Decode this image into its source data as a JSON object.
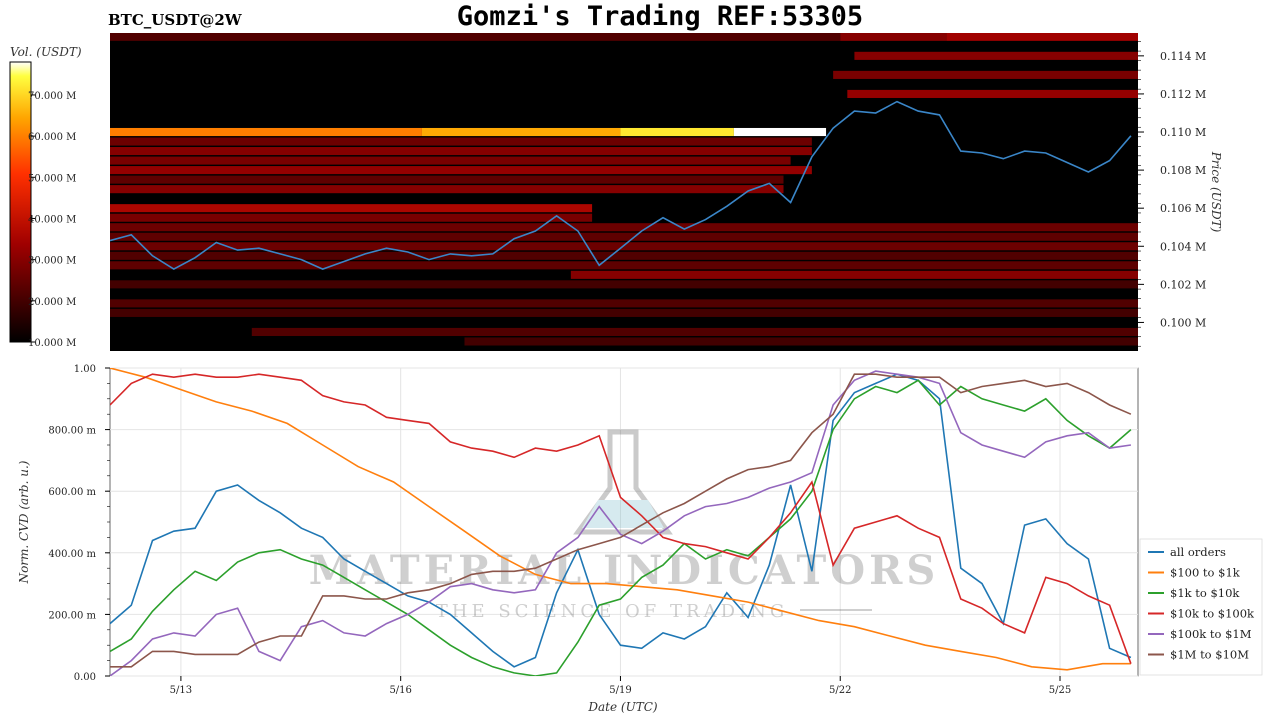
{
  "header": {
    "symbol": "BTC_USDT@2W",
    "title": "Gomzi's Trading REF:53305"
  },
  "watermark": {
    "main": "MATERIAL INDICATORS",
    "sub": "THE SCIENCE OF TRADING"
  },
  "chart_data": [
    {
      "type": "heatmap",
      "name_hidden": "",
      "colorbar": {
        "label": "Vol. (USDT)",
        "ticks": [
          "10.000 M",
          "20.000 M",
          "30.000 M",
          "40.000 M",
          "50.000 M",
          "60.000 M",
          "70.000 M"
        ],
        "range": [
          10,
          78
        ]
      },
      "ylabel": "Price (USDT)",
      "yticks": [
        "0.100 M",
        "0.102 M",
        "0.104 M",
        "0.106 M",
        "0.108 M",
        "0.110 M",
        "0.112 M",
        "0.114 M"
      ],
      "ylim": [
        98.5,
        115.2
      ],
      "xlim": [
        0,
        14.5
      ],
      "colors": {
        "low": "#000000",
        "mid": "#b30000",
        "high": "#ff6a00",
        "top": "#ffffff"
      },
      "walls": [
        {
          "price": 110.0,
          "t_start": 0.0,
          "t_end": 10.1,
          "levels": [
            [
              0,
              60
            ],
            [
              4.4,
              65
            ],
            [
              7.2,
              72
            ],
            [
              8.8,
              78
            ]
          ]
        },
        {
          "price": 115.0,
          "t_start": 0.0,
          "t_end": 14.5,
          "levels": [
            [
              0,
              22
            ],
            [
              10.3,
              30
            ],
            [
              11.8,
              34
            ]
          ]
        },
        {
          "price": 114.0,
          "t_start": 10.5,
          "t_end": 14.5,
          "levels": [
            [
              10.5,
              30
            ]
          ]
        },
        {
          "price": 113.0,
          "t_start": 10.2,
          "t_end": 14.5,
          "levels": [
            [
              10.2,
              28
            ]
          ]
        },
        {
          "price": 112.0,
          "t_start": 10.4,
          "t_end": 14.5,
          "levels": [
            [
              10.4,
              32
            ]
          ]
        },
        {
          "price": 109.5,
          "t_start": 0.0,
          "t_end": 9.9,
          "levels": [
            [
              0,
              26
            ]
          ]
        },
        {
          "price": 109.0,
          "t_start": 0.0,
          "t_end": 9.9,
          "levels": [
            [
              0,
              30
            ]
          ]
        },
        {
          "price": 108.5,
          "t_start": 0.0,
          "t_end": 9.6,
          "levels": [
            [
              0,
              28
            ]
          ]
        },
        {
          "price": 108.0,
          "t_start": 0.0,
          "t_end": 9.9,
          "levels": [
            [
              0,
              32
            ]
          ]
        },
        {
          "price": 107.5,
          "t_start": 0.0,
          "t_end": 9.5,
          "levels": [
            [
              0,
              24
            ]
          ]
        },
        {
          "price": 107.0,
          "t_start": 0.0,
          "t_end": 9.5,
          "levels": [
            [
              0,
              30
            ]
          ]
        },
        {
          "price": 106.0,
          "t_start": 0.0,
          "t_end": 6.8,
          "levels": [
            [
              0,
              36
            ]
          ]
        },
        {
          "price": 105.5,
          "t_start": 0.0,
          "t_end": 6.8,
          "levels": [
            [
              0,
              28
            ]
          ]
        },
        {
          "price": 105.0,
          "t_start": 0.0,
          "t_end": 14.5,
          "levels": [
            [
              0,
              26
            ]
          ]
        },
        {
          "price": 104.5,
          "t_start": 0.0,
          "t_end": 14.5,
          "levels": [
            [
              0,
              24
            ]
          ]
        },
        {
          "price": 104.0,
          "t_start": 0.0,
          "t_end": 14.5,
          "levels": [
            [
              0,
              26
            ]
          ]
        },
        {
          "price": 103.5,
          "t_start": 0.0,
          "t_end": 14.5,
          "levels": [
            [
              0,
              22
            ]
          ]
        },
        {
          "price": 103.0,
          "t_start": 0.0,
          "t_end": 14.5,
          "levels": [
            [
              0,
              24
            ]
          ]
        },
        {
          "price": 102.5,
          "t_start": 6.5,
          "t_end": 14.5,
          "levels": [
            [
              6.5,
              30
            ]
          ]
        },
        {
          "price": 102.0,
          "t_start": 0.0,
          "t_end": 14.5,
          "levels": [
            [
              0,
              20
            ]
          ]
        },
        {
          "price": 101.0,
          "t_start": 0.0,
          "t_end": 14.5,
          "levels": [
            [
              0,
              22
            ]
          ]
        },
        {
          "price": 100.5,
          "t_start": 0.0,
          "t_end": 14.5,
          "levels": [
            [
              0,
              20
            ]
          ]
        },
        {
          "price": 99.5,
          "t_start": 2.0,
          "t_end": 14.5,
          "levels": [
            [
              2,
              22
            ]
          ]
        },
        {
          "price": 99.0,
          "t_start": 5.0,
          "t_end": 14.5,
          "levels": [
            [
              5,
              20
            ]
          ]
        }
      ],
      "price_series": {
        "color": "#3a86c8",
        "t": [
          0.0,
          0.3,
          0.6,
          0.9,
          1.2,
          1.5,
          1.8,
          2.1,
          2.4,
          2.7,
          3.0,
          3.3,
          3.6,
          3.9,
          4.2,
          4.5,
          4.8,
          5.1,
          5.4,
          5.7,
          6.0,
          6.3,
          6.6,
          6.9,
          7.2,
          7.5,
          7.8,
          8.1,
          8.4,
          8.7,
          9.0,
          9.3,
          9.6,
          9.9,
          10.2,
          10.5,
          10.8,
          11.1,
          11.4,
          11.7,
          12.0,
          12.3,
          12.6,
          12.9,
          13.2,
          13.5,
          13.8,
          14.1,
          14.4
        ],
        "y": [
          104.3,
          104.6,
          103.5,
          102.8,
          103.4,
          104.2,
          103.8,
          103.9,
          103.6,
          103.3,
          102.8,
          103.2,
          103.6,
          103.9,
          103.7,
          103.3,
          103.6,
          103.5,
          103.6,
          104.4,
          104.8,
          105.6,
          104.8,
          103.0,
          103.9,
          104.8,
          105.5,
          104.9,
          105.4,
          106.1,
          106.9,
          107.3,
          106.3,
          108.7,
          110.2,
          111.1,
          111.0,
          111.6,
          111.1,
          110.9,
          109.0,
          108.9,
          108.6,
          109.0,
          108.9,
          108.4,
          107.9,
          108.5,
          109.8
        ]
      }
    },
    {
      "type": "line",
      "ylabel": "Norm. CVD (arb. u.)",
      "xlabel": "Date (UTC)",
      "yticks": [
        "0.00",
        "200.00 m",
        "400.00 m",
        "600.00 m",
        "800.00 m",
        "1.00"
      ],
      "ylim": [
        0,
        1.0
      ],
      "xlim": [
        0,
        14.5
      ],
      "xticks": [
        {
          "t": 1.0,
          "label": "5/13"
        },
        {
          "t": 4.1,
          "label": "5/16"
        },
        {
          "t": 7.2,
          "label": "5/19"
        },
        {
          "t": 10.3,
          "label": "5/22"
        },
        {
          "t": 13.4,
          "label": "5/25"
        }
      ],
      "legend_position": "bottom-right",
      "series": [
        {
          "name": "all orders",
          "color": "#1f77b4",
          "t": [
            0,
            0.3,
            0.6,
            0.9,
            1.2,
            1.5,
            1.8,
            2.1,
            2.4,
            2.7,
            3.0,
            3.3,
            3.6,
            3.9,
            4.2,
            4.5,
            4.8,
            5.1,
            5.4,
            5.7,
            6.0,
            6.3,
            6.6,
            6.9,
            7.2,
            7.5,
            7.8,
            8.1,
            8.4,
            8.7,
            9.0,
            9.3,
            9.6,
            9.9,
            10.2,
            10.5,
            10.8,
            11.1,
            11.4,
            11.7,
            12.0,
            12.3,
            12.6,
            12.9,
            13.2,
            13.5,
            13.8,
            14.1,
            14.4
          ],
          "y": [
            0.17,
            0.23,
            0.44,
            0.47,
            0.48,
            0.6,
            0.62,
            0.57,
            0.53,
            0.48,
            0.45,
            0.38,
            0.34,
            0.3,
            0.26,
            0.24,
            0.2,
            0.14,
            0.08,
            0.03,
            0.06,
            0.27,
            0.41,
            0.2,
            0.1,
            0.09,
            0.14,
            0.12,
            0.16,
            0.27,
            0.19,
            0.36,
            0.62,
            0.34,
            0.83,
            0.92,
            0.95,
            0.98,
            0.96,
            0.9,
            0.35,
            0.3,
            0.17,
            0.49,
            0.51,
            0.43,
            0.38,
            0.09,
            0.06
          ]
        },
        {
          "name": "$100 to $1k",
          "color": "#ff7f0e",
          "t": [
            0,
            0.5,
            1.0,
            1.5,
            2.0,
            2.5,
            3.0,
            3.5,
            4.0,
            4.5,
            5.0,
            5.5,
            6.0,
            6.5,
            7.0,
            7.5,
            8.0,
            8.5,
            9.0,
            9.5,
            10.0,
            10.5,
            11.0,
            11.5,
            12.0,
            12.5,
            13.0,
            13.5,
            14.0,
            14.4
          ],
          "y": [
            1.0,
            0.97,
            0.93,
            0.89,
            0.86,
            0.82,
            0.75,
            0.68,
            0.63,
            0.55,
            0.47,
            0.39,
            0.33,
            0.3,
            0.3,
            0.29,
            0.28,
            0.26,
            0.24,
            0.21,
            0.18,
            0.16,
            0.13,
            0.1,
            0.08,
            0.06,
            0.03,
            0.02,
            0.04,
            0.04
          ]
        },
        {
          "name": "$1k to $10k",
          "color": "#2ca02c",
          "t": [
            0,
            0.3,
            0.6,
            0.9,
            1.2,
            1.5,
            1.8,
            2.1,
            2.4,
            2.7,
            3.0,
            3.3,
            3.6,
            3.9,
            4.2,
            4.5,
            4.8,
            5.1,
            5.4,
            5.7,
            6.0,
            6.3,
            6.6,
            6.9,
            7.2,
            7.5,
            7.8,
            8.1,
            8.4,
            8.7,
            9.0,
            9.3,
            9.6,
            9.9,
            10.2,
            10.5,
            10.8,
            11.1,
            11.4,
            11.7,
            12.0,
            12.3,
            12.6,
            12.9,
            13.2,
            13.5,
            13.8,
            14.1,
            14.4
          ],
          "y": [
            0.08,
            0.12,
            0.21,
            0.28,
            0.34,
            0.31,
            0.37,
            0.4,
            0.41,
            0.38,
            0.36,
            0.32,
            0.28,
            0.24,
            0.2,
            0.15,
            0.1,
            0.06,
            0.03,
            0.01,
            0.0,
            0.01,
            0.11,
            0.23,
            0.25,
            0.32,
            0.36,
            0.43,
            0.38,
            0.41,
            0.39,
            0.45,
            0.51,
            0.6,
            0.8,
            0.9,
            0.94,
            0.92,
            0.96,
            0.88,
            0.94,
            0.9,
            0.88,
            0.86,
            0.9,
            0.83,
            0.78,
            0.74,
            0.8
          ]
        },
        {
          "name": "$10k to $100k",
          "color": "#d62728",
          "t": [
            0,
            0.3,
            0.6,
            0.9,
            1.2,
            1.5,
            1.8,
            2.1,
            2.4,
            2.7,
            3.0,
            3.3,
            3.6,
            3.9,
            4.2,
            4.5,
            4.8,
            5.1,
            5.4,
            5.7,
            6.0,
            6.3,
            6.6,
            6.9,
            7.2,
            7.5,
            7.8,
            8.1,
            8.4,
            8.7,
            9.0,
            9.3,
            9.6,
            9.9,
            10.2,
            10.5,
            10.8,
            11.1,
            11.4,
            11.7,
            12.0,
            12.3,
            12.6,
            12.9,
            13.2,
            13.5,
            13.8,
            14.1,
            14.4
          ],
          "y": [
            0.88,
            0.95,
            0.98,
            0.97,
            0.98,
            0.97,
            0.97,
            0.98,
            0.97,
            0.96,
            0.91,
            0.89,
            0.88,
            0.84,
            0.83,
            0.82,
            0.76,
            0.74,
            0.73,
            0.71,
            0.74,
            0.73,
            0.75,
            0.78,
            0.58,
            0.52,
            0.45,
            0.43,
            0.42,
            0.4,
            0.38,
            0.45,
            0.53,
            0.63,
            0.36,
            0.48,
            0.5,
            0.52,
            0.48,
            0.45,
            0.25,
            0.22,
            0.17,
            0.14,
            0.32,
            0.3,
            0.26,
            0.23,
            0.04
          ]
        },
        {
          "name": "$100k to $1M",
          "color": "#9467bd",
          "t": [
            0,
            0.3,
            0.6,
            0.9,
            1.2,
            1.5,
            1.8,
            2.1,
            2.4,
            2.7,
            3.0,
            3.3,
            3.6,
            3.9,
            4.2,
            4.5,
            4.8,
            5.1,
            5.4,
            5.7,
            6.0,
            6.3,
            6.6,
            6.9,
            7.2,
            7.5,
            7.8,
            8.1,
            8.4,
            8.7,
            9.0,
            9.3,
            9.6,
            9.9,
            10.2,
            10.5,
            10.8,
            11.1,
            11.4,
            11.7,
            12.0,
            12.3,
            12.6,
            12.9,
            13.2,
            13.5,
            13.8,
            14.1,
            14.4
          ],
          "y": [
            0.0,
            0.05,
            0.12,
            0.14,
            0.13,
            0.2,
            0.22,
            0.08,
            0.05,
            0.16,
            0.18,
            0.14,
            0.13,
            0.17,
            0.2,
            0.24,
            0.29,
            0.3,
            0.28,
            0.27,
            0.28,
            0.4,
            0.45,
            0.55,
            0.46,
            0.43,
            0.47,
            0.52,
            0.55,
            0.56,
            0.58,
            0.61,
            0.63,
            0.66,
            0.88,
            0.96,
            0.99,
            0.98,
            0.97,
            0.95,
            0.79,
            0.75,
            0.73,
            0.71,
            0.76,
            0.78,
            0.79,
            0.74,
            0.75
          ]
        },
        {
          "name": "$1M to $10M",
          "color": "#8c564b",
          "t": [
            0,
            0.3,
            0.6,
            0.9,
            1.2,
            1.5,
            1.8,
            2.1,
            2.4,
            2.7,
            3.0,
            3.3,
            3.6,
            3.9,
            4.2,
            4.5,
            4.8,
            5.1,
            5.4,
            5.7,
            6.0,
            6.3,
            6.6,
            6.9,
            7.2,
            7.5,
            7.8,
            8.1,
            8.4,
            8.7,
            9.0,
            9.3,
            9.6,
            9.9,
            10.2,
            10.5,
            10.8,
            11.1,
            11.4,
            11.7,
            12.0,
            12.3,
            12.6,
            12.9,
            13.2,
            13.5,
            13.8,
            14.1,
            14.4
          ],
          "y": [
            0.03,
            0.03,
            0.08,
            0.08,
            0.07,
            0.07,
            0.07,
            0.11,
            0.13,
            0.13,
            0.26,
            0.26,
            0.25,
            0.25,
            0.27,
            0.28,
            0.3,
            0.33,
            0.34,
            0.34,
            0.35,
            0.38,
            0.41,
            0.43,
            0.45,
            0.49,
            0.53,
            0.56,
            0.6,
            0.64,
            0.67,
            0.68,
            0.7,
            0.79,
            0.85,
            0.98,
            0.98,
            0.97,
            0.97,
            0.97,
            0.92,
            0.94,
            0.95,
            0.96,
            0.94,
            0.95,
            0.92,
            0.88,
            0.85
          ]
        }
      ]
    }
  ]
}
